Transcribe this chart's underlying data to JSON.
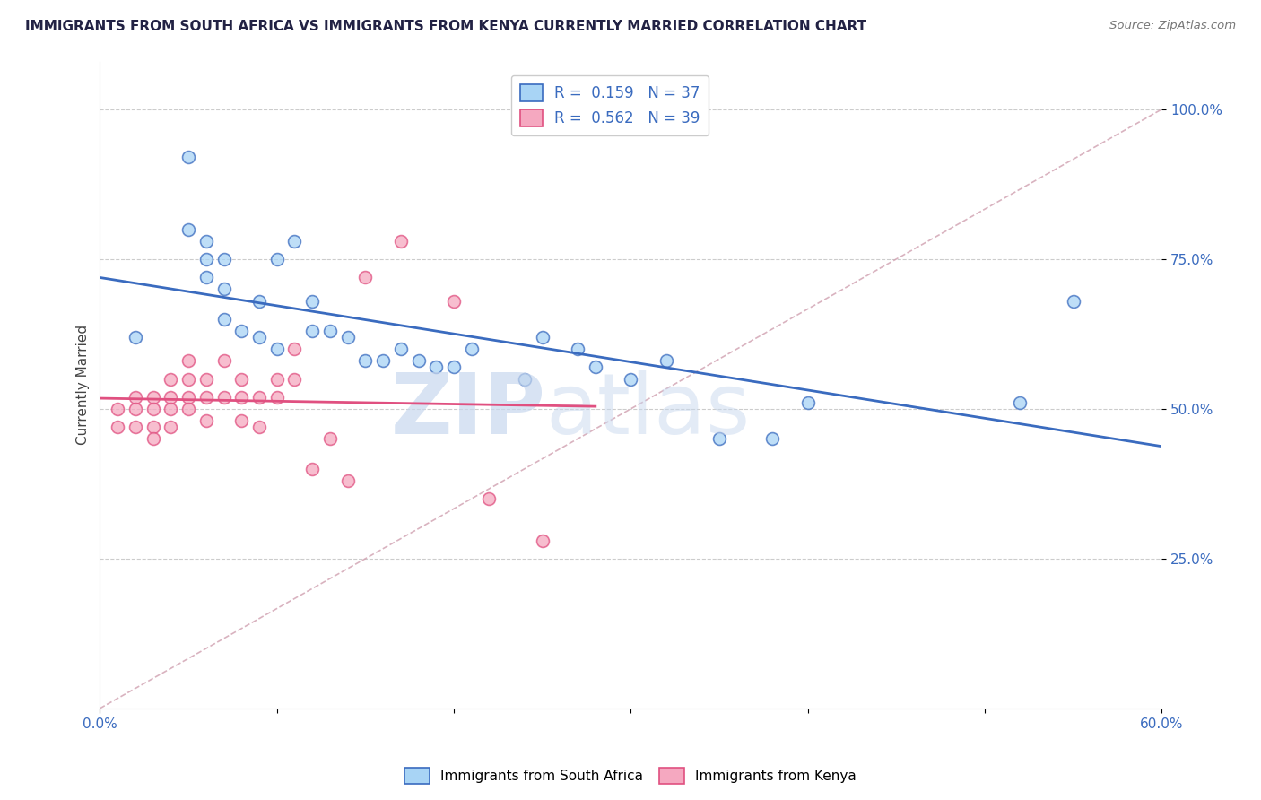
{
  "title": "IMMIGRANTS FROM SOUTH AFRICA VS IMMIGRANTS FROM KENYA CURRENTLY MARRIED CORRELATION CHART",
  "source": "Source: ZipAtlas.com",
  "ylabel": "Currently Married",
  "xlim": [
    0.0,
    0.6
  ],
  "ylim": [
    0.0,
    1.05
  ],
  "xticks": [
    0.0,
    0.1,
    0.2,
    0.3,
    0.4,
    0.5,
    0.6
  ],
  "xticklabels": [
    "0.0%",
    "",
    "",
    "",
    "",
    "",
    "60.0%"
  ],
  "ytick_positions": [
    0.25,
    0.5,
    0.75,
    1.0
  ],
  "yticklabels": [
    "25.0%",
    "50.0%",
    "75.0%",
    "100.0%"
  ],
  "R_south_africa": 0.159,
  "N_south_africa": 37,
  "R_kenya": 0.562,
  "N_kenya": 39,
  "color_south_africa": "#a8d4f5",
  "color_kenya": "#f5a8c0",
  "line_color_south_africa": "#3a6bbf",
  "line_color_kenya": "#e05080",
  "diagonal_color": "#d0a0b0",
  "background_color": "#FFFFFF",
  "south_africa_x": [
    0.02,
    0.05,
    0.05,
    0.06,
    0.06,
    0.06,
    0.07,
    0.07,
    0.07,
    0.08,
    0.09,
    0.09,
    0.1,
    0.1,
    0.11,
    0.12,
    0.12,
    0.13,
    0.14,
    0.15,
    0.16,
    0.17,
    0.18,
    0.19,
    0.2,
    0.21,
    0.24,
    0.25,
    0.27,
    0.28,
    0.3,
    0.32,
    0.35,
    0.38,
    0.4,
    0.52,
    0.55
  ],
  "south_africa_y": [
    0.62,
    0.92,
    0.8,
    0.78,
    0.75,
    0.72,
    0.75,
    0.7,
    0.65,
    0.63,
    0.68,
    0.62,
    0.6,
    0.75,
    0.78,
    0.68,
    0.63,
    0.63,
    0.62,
    0.58,
    0.58,
    0.6,
    0.58,
    0.57,
    0.57,
    0.6,
    0.55,
    0.62,
    0.6,
    0.57,
    0.55,
    0.58,
    0.45,
    0.45,
    0.51,
    0.51,
    0.68
  ],
  "kenya_x": [
    0.01,
    0.01,
    0.02,
    0.02,
    0.02,
    0.03,
    0.03,
    0.03,
    0.03,
    0.04,
    0.04,
    0.04,
    0.04,
    0.05,
    0.05,
    0.05,
    0.05,
    0.06,
    0.06,
    0.06,
    0.07,
    0.07,
    0.08,
    0.08,
    0.08,
    0.09,
    0.09,
    0.1,
    0.1,
    0.11,
    0.11,
    0.12,
    0.13,
    0.14,
    0.15,
    0.17,
    0.2,
    0.22,
    0.25
  ],
  "kenya_y": [
    0.5,
    0.47,
    0.52,
    0.5,
    0.47,
    0.52,
    0.5,
    0.47,
    0.45,
    0.55,
    0.52,
    0.5,
    0.47,
    0.58,
    0.55,
    0.52,
    0.5,
    0.55,
    0.52,
    0.48,
    0.58,
    0.52,
    0.55,
    0.52,
    0.48,
    0.52,
    0.47,
    0.55,
    0.52,
    0.6,
    0.55,
    0.4,
    0.45,
    0.38,
    0.72,
    0.78,
    0.68,
    0.35,
    0.28
  ]
}
